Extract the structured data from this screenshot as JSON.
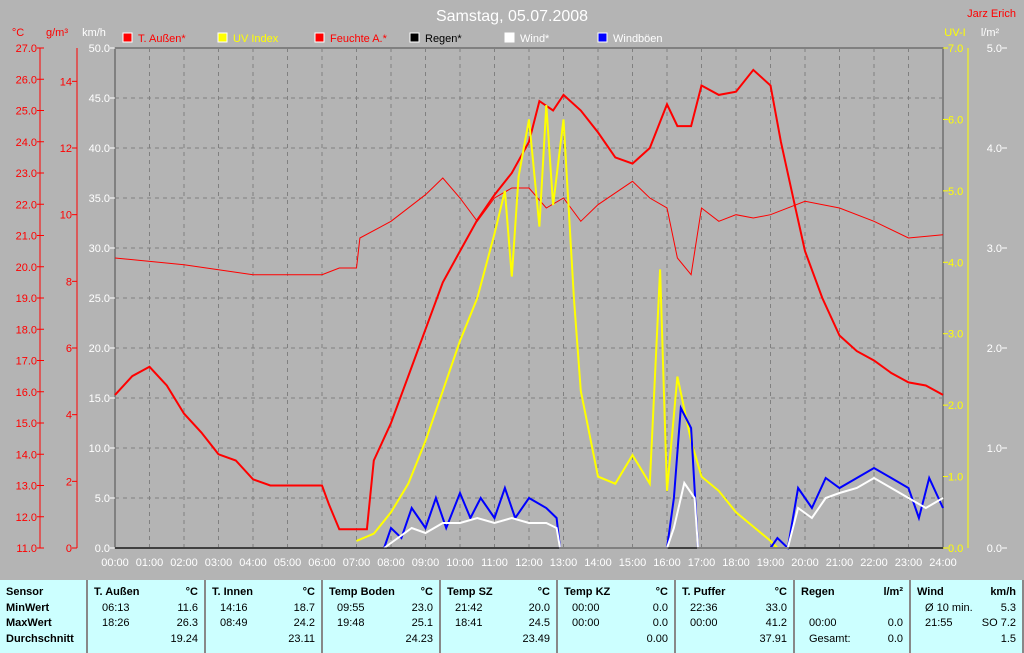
{
  "title": "Samstag, 05.07.2008",
  "user": "Jarz Erich",
  "chart_data": {
    "type": "line",
    "title": "Samstag, 05.07.2008",
    "xlabel": "",
    "xlim": [
      0,
      24
    ],
    "x_ticks": [
      "00:00",
      "01:00",
      "02:00",
      "03:00",
      "04:00",
      "05:00",
      "06:00",
      "07:00",
      "08:00",
      "09:00",
      "10:00",
      "11:00",
      "12:00",
      "13:00",
      "14:00",
      "15:00",
      "16:00",
      "17:00",
      "18:00",
      "19:00",
      "20:00",
      "21:00",
      "22:00",
      "23:00",
      "24:00"
    ],
    "axes": {
      "temp": {
        "unit": "°C",
        "range": [
          11,
          27
        ],
        "ticks": [
          "11.0",
          "12.0",
          "13.0",
          "14.0",
          "15.0",
          "16.0",
          "17.0",
          "18.0",
          "19.0",
          "20.0",
          "21.0",
          "22.0",
          "23.0",
          "24.0",
          "25.0",
          "26.0",
          "27.0"
        ]
      },
      "hum": {
        "unit": "g/m³",
        "range": [
          0,
          15
        ],
        "ticks": [
          "0",
          "2",
          "4",
          "6",
          "8",
          "10",
          "12",
          "14"
        ]
      },
      "wind": {
        "unit": "km/h",
        "range": [
          0,
          50
        ],
        "ticks": [
          "0.0",
          "5.0",
          "10.0",
          "15.0",
          "20.0",
          "25.0",
          "30.0",
          "35.0",
          "40.0",
          "45.0",
          "50.0"
        ]
      },
      "uv": {
        "unit": "UV-I",
        "range": [
          0,
          7
        ],
        "ticks": [
          "0.0",
          "1.0",
          "2.0",
          "3.0",
          "4.0",
          "5.0",
          "6.0",
          "7.0"
        ]
      },
      "rain": {
        "unit": "l/m²",
        "range": [
          0,
          5
        ],
        "ticks": [
          "0.0",
          "1.0",
          "2.0",
          "3.0",
          "4.0",
          "5.0"
        ]
      }
    },
    "legend": [
      {
        "name": "T. Außen*",
        "color": "#ff0000",
        "text": "#ff0000"
      },
      {
        "name": "UV Index",
        "color": "#ffff00",
        "text": "#ffff00"
      },
      {
        "name": "Feuchte A.*",
        "color": "#ff0000",
        "text": "#ff0000"
      },
      {
        "name": "Regen*",
        "color": "#000000",
        "text": "#000000"
      },
      {
        "name": "Wind*",
        "color": "#ffffff",
        "text": "#ffffff"
      },
      {
        "name": "Windböen",
        "color": "#0000ff",
        "text": "#ffffff"
      }
    ],
    "series": [
      {
        "name": "T. Außen",
        "axis": "temp",
        "color": "#ff0000",
        "width": 2,
        "points": [
          [
            0,
            15.9
          ],
          [
            0.5,
            16.5
          ],
          [
            1,
            16.8
          ],
          [
            1.5,
            16.2
          ],
          [
            2,
            15.3
          ],
          [
            2.5,
            14.7
          ],
          [
            3,
            14.0
          ],
          [
            3.5,
            13.8
          ],
          [
            4,
            13.2
          ],
          [
            4.5,
            13.0
          ],
          [
            5,
            13.0
          ],
          [
            6,
            13.0
          ],
          [
            6.2,
            12.4
          ],
          [
            6.5,
            11.6
          ],
          [
            7.3,
            11.6
          ],
          [
            7.5,
            13.8
          ],
          [
            8,
            15.0
          ],
          [
            8.5,
            16.5
          ],
          [
            9,
            18.0
          ],
          [
            9.5,
            19.5
          ],
          [
            10,
            20.5
          ],
          [
            10.5,
            21.5
          ],
          [
            11,
            22.3
          ],
          [
            11.5,
            23.0
          ],
          [
            12,
            24.0
          ],
          [
            12.3,
            25.3
          ],
          [
            12.7,
            25.0
          ],
          [
            13,
            25.5
          ],
          [
            13.5,
            25.0
          ],
          [
            14,
            24.3
          ],
          [
            14.5,
            23.5
          ],
          [
            15,
            23.3
          ],
          [
            15.5,
            23.8
          ],
          [
            16,
            25.2
          ],
          [
            16.3,
            24.5
          ],
          [
            16.7,
            24.5
          ],
          [
            17,
            25.8
          ],
          [
            17.5,
            25.5
          ],
          [
            18,
            25.6
          ],
          [
            18.5,
            26.3
          ],
          [
            19,
            25.8
          ],
          [
            19.3,
            24.0
          ],
          [
            19.7,
            22.0
          ],
          [
            20,
            20.5
          ],
          [
            20.5,
            19.0
          ],
          [
            21,
            17.8
          ],
          [
            21.5,
            17.3
          ],
          [
            22,
            17.0
          ],
          [
            22.5,
            16.6
          ],
          [
            23,
            16.3
          ],
          [
            23.5,
            16.2
          ],
          [
            24,
            15.9
          ]
        ]
      },
      {
        "name": "Feuchte A.",
        "axis": "hum",
        "color": "#ff0000",
        "width": 1,
        "points": [
          [
            0,
            8.7
          ],
          [
            2,
            8.5
          ],
          [
            4,
            8.2
          ],
          [
            6,
            8.2
          ],
          [
            6.5,
            8.4
          ],
          [
            7,
            8.4
          ],
          [
            7.1,
            9.3
          ],
          [
            8,
            9.8
          ],
          [
            9,
            10.6
          ],
          [
            9.5,
            11.1
          ],
          [
            10,
            10.5
          ],
          [
            10.5,
            9.8
          ],
          [
            11,
            10.5
          ],
          [
            11.5,
            10.8
          ],
          [
            12,
            10.8
          ],
          [
            12.5,
            10.2
          ],
          [
            13,
            10.5
          ],
          [
            13.5,
            9.8
          ],
          [
            14,
            10.3
          ],
          [
            15,
            11.0
          ],
          [
            15.5,
            10.5
          ],
          [
            16,
            10.2
          ],
          [
            16.3,
            8.7
          ],
          [
            16.7,
            8.2
          ],
          [
            17,
            10.2
          ],
          [
            17.5,
            9.8
          ],
          [
            18,
            10.0
          ],
          [
            18.5,
            9.9
          ],
          [
            19,
            10.0
          ],
          [
            20,
            10.4
          ],
          [
            21,
            10.2
          ],
          [
            22,
            9.8
          ],
          [
            23,
            9.3
          ],
          [
            24,
            9.4
          ]
        ]
      },
      {
        "name": "UV Index",
        "axis": "uv",
        "color": "#ffff00",
        "width": 2,
        "points": [
          [
            7,
            0.1
          ],
          [
            7.5,
            0.2
          ],
          [
            8,
            0.5
          ],
          [
            8.5,
            0.9
          ],
          [
            9,
            1.5
          ],
          [
            9.5,
            2.2
          ],
          [
            10,
            2.9
          ],
          [
            10.5,
            3.5
          ],
          [
            11,
            4.4
          ],
          [
            11.3,
            5.0
          ],
          [
            11.5,
            3.8
          ],
          [
            11.7,
            5.2
          ],
          [
            12,
            6.0
          ],
          [
            12.3,
            4.5
          ],
          [
            12.5,
            6.2
          ],
          [
            12.7,
            4.8
          ],
          [
            13,
            6.0
          ],
          [
            13.3,
            3.5
          ],
          [
            13.5,
            2.2
          ],
          [
            14,
            1.0
          ],
          [
            14.5,
            0.9
          ],
          [
            15,
            1.3
          ],
          [
            15.5,
            0.9
          ],
          [
            15.8,
            3.9
          ],
          [
            16,
            0.8
          ],
          [
            16.3,
            2.4
          ],
          [
            16.7,
            1.5
          ],
          [
            17,
            1.0
          ],
          [
            17.5,
            0.8
          ],
          [
            18,
            0.5
          ],
          [
            18.5,
            0.3
          ],
          [
            19,
            0.1
          ],
          [
            19.2,
            0
          ]
        ]
      },
      {
        "name": "Windböen",
        "axis": "wind",
        "color": "#0000ff",
        "width": 2,
        "points": [
          [
            7.8,
            0
          ],
          [
            8,
            2
          ],
          [
            8.3,
            1
          ],
          [
            8.6,
            4
          ],
          [
            9,
            2
          ],
          [
            9.3,
            5
          ],
          [
            9.6,
            2
          ],
          [
            10,
            5.5
          ],
          [
            10.3,
            3
          ],
          [
            10.6,
            5
          ],
          [
            11,
            3
          ],
          [
            11.3,
            6
          ],
          [
            11.6,
            3
          ],
          [
            12,
            5
          ],
          [
            12.5,
            4
          ],
          [
            12.8,
            3
          ],
          [
            12.9,
            0
          ],
          [
            16,
            0
          ],
          [
            16.2,
            5
          ],
          [
            16.4,
            14
          ],
          [
            16.7,
            12
          ],
          [
            16.9,
            0
          ],
          [
            19,
            0
          ],
          [
            19.2,
            1
          ],
          [
            19.5,
            0
          ],
          [
            19.8,
            6
          ],
          [
            20.2,
            4
          ],
          [
            20.6,
            7
          ],
          [
            21,
            6
          ],
          [
            21.5,
            7
          ],
          [
            22,
            8
          ],
          [
            22.5,
            7
          ],
          [
            23,
            6
          ],
          [
            23.3,
            3
          ],
          [
            23.6,
            7
          ],
          [
            24,
            4
          ]
        ]
      },
      {
        "name": "Wind",
        "axis": "wind",
        "color": "#ffffff",
        "width": 2,
        "points": [
          [
            7.8,
            0
          ],
          [
            8.2,
            1
          ],
          [
            8.6,
            2
          ],
          [
            9,
            1.5
          ],
          [
            9.5,
            2.5
          ],
          [
            10,
            2.5
          ],
          [
            10.5,
            3
          ],
          [
            11,
            2.5
          ],
          [
            11.5,
            3
          ],
          [
            12,
            2.5
          ],
          [
            12.5,
            2.5
          ],
          [
            12.8,
            2
          ],
          [
            12.9,
            0
          ],
          [
            16,
            0
          ],
          [
            16.2,
            2
          ],
          [
            16.5,
            6.5
          ],
          [
            16.8,
            5
          ],
          [
            16.9,
            0
          ],
          [
            19.5,
            0
          ],
          [
            19.8,
            4
          ],
          [
            20.2,
            3
          ],
          [
            20.6,
            5
          ],
          [
            21,
            5.5
          ],
          [
            21.5,
            6
          ],
          [
            22,
            7
          ],
          [
            22.5,
            6
          ],
          [
            23,
            5
          ],
          [
            23.5,
            4
          ],
          [
            24,
            5
          ]
        ]
      },
      {
        "name": "Regen",
        "axis": "rain",
        "color": "#000000",
        "width": 1,
        "points": [
          [
            0,
            0
          ],
          [
            24,
            0
          ]
        ]
      }
    ]
  },
  "table": {
    "columns": [
      {
        "name": "Sensor",
        "unit": "",
        "rows": [
          [
            "MinWert",
            ""
          ],
          [
            "MaxWert",
            ""
          ],
          [
            "Durchschnitt",
            ""
          ]
        ]
      },
      {
        "name": "T. Außen",
        "unit": "°C",
        "rows": [
          [
            "06:13",
            "11.6"
          ],
          [
            "18:26",
            "26.3"
          ],
          [
            "",
            "19.24"
          ]
        ]
      },
      {
        "name": "T. Innen",
        "unit": "°C",
        "rows": [
          [
            "14:16",
            "18.7"
          ],
          [
            "08:49",
            "24.2"
          ],
          [
            "",
            "23.11"
          ]
        ]
      },
      {
        "name": "Temp Boden",
        "unit": "°C",
        "rows": [
          [
            "09:55",
            "23.0"
          ],
          [
            "19:48",
            "25.1"
          ],
          [
            "",
            "24.23"
          ]
        ]
      },
      {
        "name": "Temp SZ",
        "unit": "°C",
        "rows": [
          [
            "21:42",
            "20.0"
          ],
          [
            "18:41",
            "24.5"
          ],
          [
            "",
            "23.49"
          ]
        ]
      },
      {
        "name": "Temp KZ",
        "unit": "°C",
        "rows": [
          [
            "00:00",
            "0.0"
          ],
          [
            "00:00",
            "0.0"
          ],
          [
            "",
            "0.00"
          ]
        ]
      },
      {
        "name": "T. Puffer",
        "unit": "°C",
        "rows": [
          [
            "22:36",
            "33.0"
          ],
          [
            "00:00",
            "41.2"
          ],
          [
            "",
            "37.91"
          ]
        ]
      },
      {
        "name": "Regen",
        "unit": "l/m²",
        "rows": [
          [
            "",
            ""
          ],
          [
            "00:00",
            "0.0"
          ],
          [
            "Gesamt:",
            "0.0"
          ]
        ]
      },
      {
        "name": "Wind",
        "unit": "km/h",
        "rows": [
          [
            "Ø 10 min.",
            "5.3"
          ],
          [
            "21:55",
            "SO 7.2"
          ],
          [
            "",
            "1.5"
          ]
        ]
      }
    ]
  }
}
